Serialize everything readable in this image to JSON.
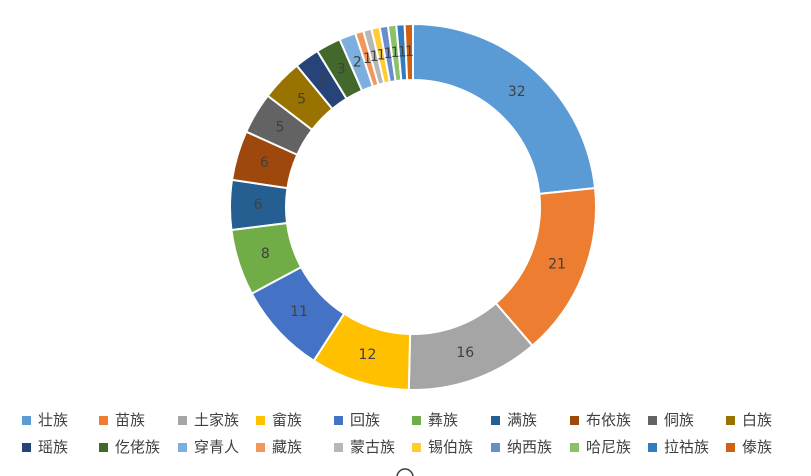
{
  "chart_data": {
    "type": "pie",
    "style": "donut",
    "legend_position": "bottom",
    "categories": [
      "壮族",
      "苗族",
      "土家族",
      "畲族",
      "回族",
      "彝族",
      "满族",
      "布依族",
      "侗族",
      "白族",
      "瑶族",
      "仡佬族",
      "穿青人",
      "藏族",
      "蒙古族",
      "锡伯族",
      "纳西族",
      "哈尼族",
      "拉祜族",
      "傣族"
    ],
    "values": [
      32,
      21,
      16,
      12,
      11,
      8,
      6,
      6,
      5,
      5,
      3,
      3,
      2,
      1,
      1,
      1,
      1,
      1,
      1,
      1
    ],
    "data_labels": [
      "32",
      "21",
      "16",
      "12",
      "11",
      "8",
      "6",
      "6",
      "5",
      "5",
      "3",
      "3",
      "2",
      "1",
      "1",
      "1",
      "1",
      "1",
      "1",
      "1"
    ],
    "colors": [
      "#5B9BD5",
      "#ED7D31",
      "#A5A5A5",
      "#FFC000",
      "#4472C4",
      "#70AD47",
      "#255E91",
      "#9E480E",
      "#636363",
      "#997300",
      "#264478",
      "#43682B",
      "#7CAFDD",
      "#F1975A",
      "#B7B7B7",
      "#FFCD33",
      "#698ED0",
      "#8CC168",
      "#327DC2",
      "#D26012"
    ]
  }
}
